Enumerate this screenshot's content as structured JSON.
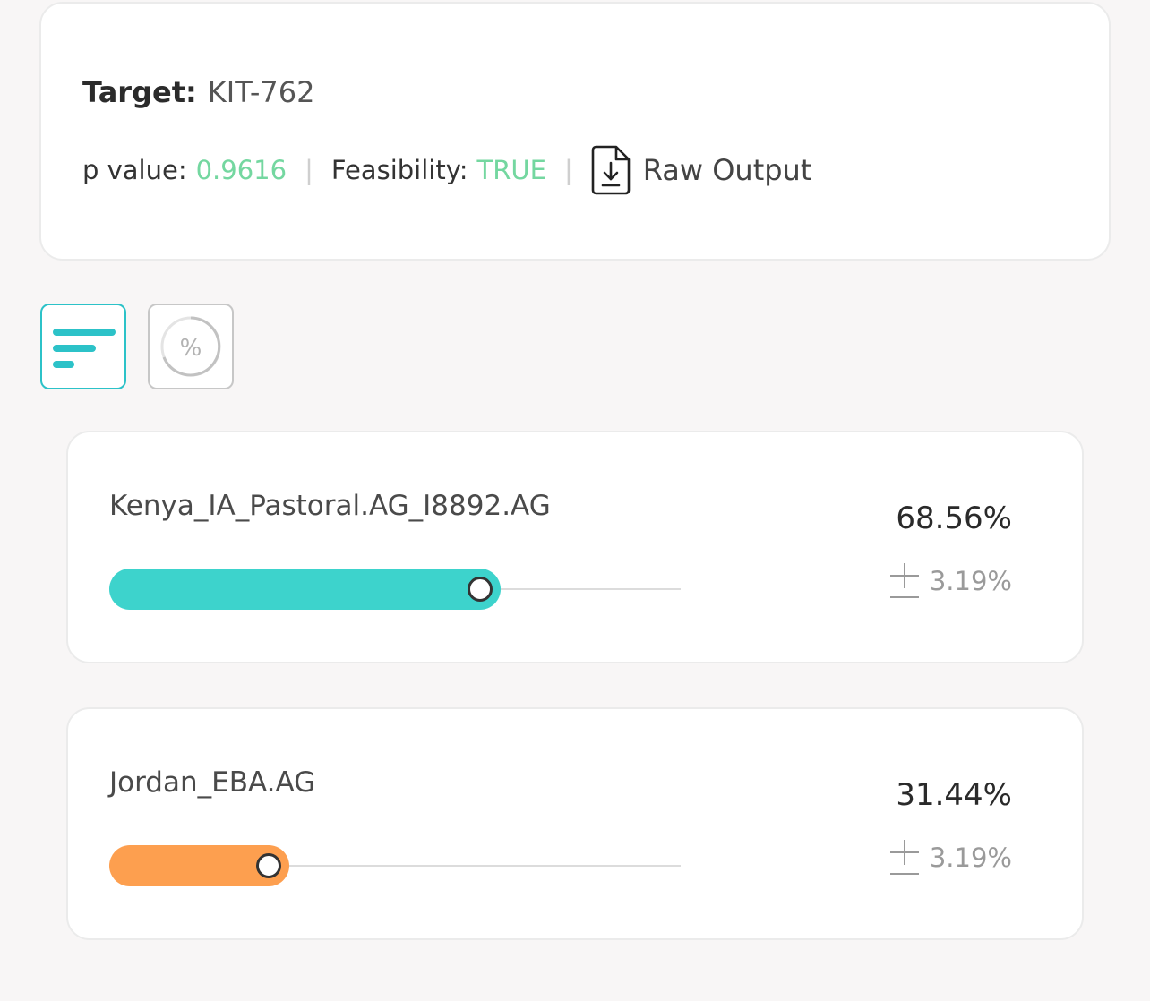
{
  "summary": {
    "target_label": "Target:",
    "target_value": "KIT-762",
    "p_value_label": "p value:",
    "p_value": "0.9616",
    "feasibility_label": "Feasibility:",
    "feasibility_value": "TRUE",
    "separator": "|",
    "raw_output_label": "Raw Output",
    "raw_output_icon": "file-download-icon",
    "accent_color": "#74d7a0"
  },
  "view_toggles": [
    {
      "icon": "bar-list-icon",
      "active": true,
      "color": "#2cc2c8"
    },
    {
      "icon": "percent-circle-icon",
      "active": false,
      "glyph": "%",
      "color": "#c7c7c7"
    }
  ],
  "populations": [
    {
      "name": "Kenya_IA_Pastoral.AG_I8892.AG",
      "percentage": "68.56%",
      "fraction": 0.6856,
      "error_symbol": "±",
      "error": "3.19%",
      "color": "#3dd3cc"
    },
    {
      "name": "Jordan_EBA.AG",
      "percentage": "31.44%",
      "fraction": 0.3144,
      "error_symbol": "±",
      "error": "3.19%",
      "color": "#fd9f4f"
    }
  ]
}
